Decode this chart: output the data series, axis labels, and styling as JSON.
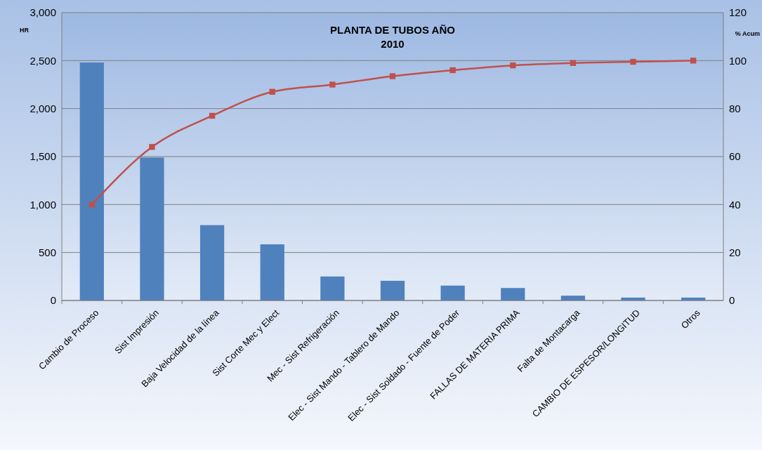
{
  "chart_data": {
    "type": "bar",
    "title": "PLANTA DE TUBOS AÑO\n2010",
    "ylabel": "HR",
    "y2label": "% Acum",
    "categories": [
      "Cambio de Proceso",
      "Sist Impresión",
      "Baja Velocidad de la línea",
      "Sist Corte Mec y Elect",
      "Mec - Sist Refrigeración",
      "Elec - Sist Mando - Tablero de Mando",
      "Elec - Sist Soldado - Fuente de Poder",
      "FALLAS DE MATERIA PRIMA",
      "Falta de Montacarga",
      "CAMBIO DE ESPESOR/LONGITUD",
      "Otros"
    ],
    "series": [
      {
        "color": "#4f81bd",
        "values": [
          2480,
          1490,
          785,
          585,
          250,
          205,
          155,
          130,
          50,
          30,
          30
        ]
      },
      {
        "type": "line",
        "axis": "y2",
        "color": "#c0504d",
        "marker": "square",
        "values": [
          40,
          64,
          77,
          87,
          90,
          93.5,
          96,
          98,
          99,
          99.5,
          100
        ]
      }
    ],
    "ylim": [
      0,
      3000
    ],
    "yticks": [
      0,
      500,
      {
        "value": 1000,
        "label": "1,000"
      },
      {
        "value": 1500,
        "label": "1,500"
      },
      {
        "value": 2000,
        "label": "2,000"
      },
      {
        "value": 2500,
        "label": "2,500"
      },
      {
        "value": 3000,
        "label": "3,000"
      }
    ],
    "y2lim": [
      0,
      120
    ],
    "y2ticks": [
      0,
      20,
      40,
      60,
      80,
      100,
      120
    ],
    "grid": "y"
  }
}
